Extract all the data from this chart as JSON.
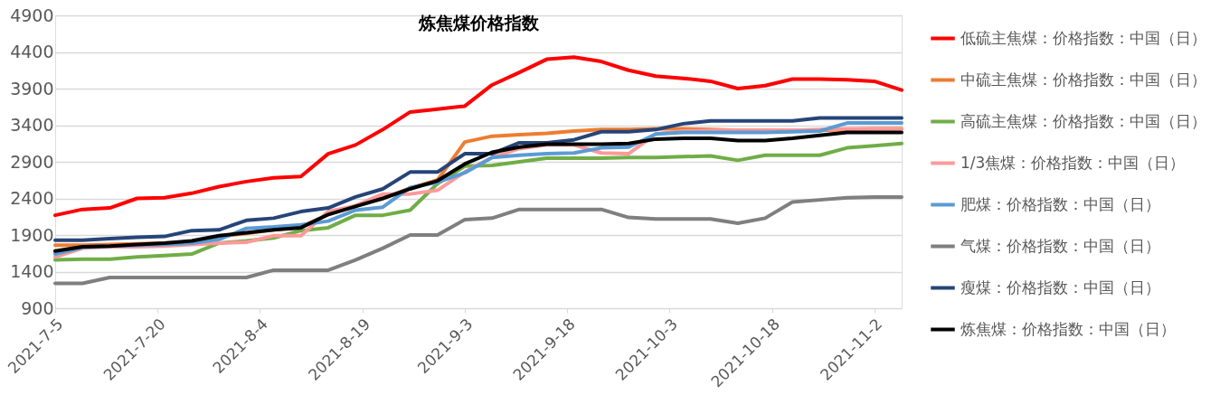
{
  "chart_data": {
    "type": "line",
    "title": "炼焦煤价格指数",
    "x": [
      "2021-07-05",
      "2021-07-09",
      "2021-07-13",
      "2021-07-17",
      "2021-07-21",
      "2021-07-25",
      "2021-07-29",
      "2021-08-02",
      "2021-08-06",
      "2021-08-10",
      "2021-08-14",
      "2021-08-18",
      "2021-08-22",
      "2021-08-26",
      "2021-08-30",
      "2021-09-03",
      "2021-09-07",
      "2021-09-11",
      "2021-09-15",
      "2021-09-19",
      "2021-09-23",
      "2021-09-27",
      "2021-10-01",
      "2021-10-05",
      "2021-10-09",
      "2021-10-13",
      "2021-10-17",
      "2021-10-21",
      "2021-10-25",
      "2021-10-29",
      "2021-11-02",
      "2021-11-06"
    ],
    "series": [
      {
        "name": "低硫主焦煤：价格指数：中国（日）",
        "color": "#ff0000",
        "values": [
          2170,
          2250,
          2270,
          2400,
          2410,
          2470,
          2560,
          2630,
          2680,
          2700,
          3010,
          3130,
          3340,
          3580,
          3620,
          3660,
          3950,
          4120,
          4300,
          4330,
          4270,
          4150,
          4070,
          4040,
          4000,
          3900,
          3940,
          4030,
          4030,
          4020,
          4000,
          3880
        ]
      },
      {
        "name": "中硫主焦煤：价格指数：中国（日）",
        "color": "#ed7d31",
        "values": [
          1760,
          1760,
          1770,
          1780,
          1790,
          1800,
          1880,
          1920,
          1970,
          2010,
          2180,
          2300,
          2400,
          2540,
          2650,
          3170,
          3250,
          3270,
          3290,
          3320,
          3340,
          3340,
          3350,
          3350,
          3340,
          3330,
          3330,
          3330,
          3330,
          3340,
          3350,
          3350
        ]
      },
      {
        "name": "高硫主焦煤：价格指数：中国（日）",
        "color": "#70ad47",
        "values": [
          1560,
          1570,
          1570,
          1600,
          1620,
          1640,
          1790,
          1820,
          1860,
          1960,
          2000,
          2170,
          2170,
          2240,
          2600,
          2840,
          2850,
          2900,
          2950,
          2950,
          2950,
          2960,
          2960,
          2970,
          2980,
          2920,
          2990,
          2990,
          2990,
          3090,
          3120,
          3150
        ]
      },
      {
        "name": "1/3焦煤：价格指数：中国（日）",
        "color": "#ff9999",
        "values": [
          1600,
          1720,
          1740,
          1740,
          1750,
          1770,
          1790,
          1800,
          1890,
          1890,
          2220,
          2300,
          2460,
          2460,
          2510,
          2760,
          2960,
          3080,
          3130,
          3130,
          3020,
          3010,
          3280,
          3320,
          3330,
          3330,
          3330,
          3330,
          3340,
          3350,
          3350,
          3350
        ]
      },
      {
        "name": "肥煤：价格指数：中国（日）",
        "color": "#5b9bd5",
        "values": [
          1640,
          1730,
          1750,
          1760,
          1770,
          1790,
          1840,
          1990,
          2010,
          2040,
          2090,
          2240,
          2280,
          2550,
          2620,
          2750,
          2960,
          2990,
          3010,
          3020,
          3090,
          3100,
          3280,
          3300,
          3300,
          3300,
          3300,
          3310,
          3320,
          3430,
          3430,
          3430
        ]
      },
      {
        "name": "气煤：价格指数：中国（日）",
        "color": "#7f7f7f",
        "values": [
          1240,
          1240,
          1320,
          1320,
          1320,
          1320,
          1320,
          1320,
          1420,
          1420,
          1420,
          1560,
          1720,
          1900,
          1900,
          2110,
          2130,
          2250,
          2250,
          2250,
          2250,
          2140,
          2120,
          2120,
          2120,
          2060,
          2130,
          2350,
          2380,
          2410,
          2420,
          2420
        ]
      },
      {
        "name": "瘦煤：价格指数：中国（日）",
        "color": "#264478",
        "values": [
          1830,
          1830,
          1850,
          1870,
          1880,
          1960,
          1970,
          2100,
          2130,
          2220,
          2270,
          2420,
          2530,
          2760,
          2760,
          3010,
          3010,
          3160,
          3160,
          3200,
          3310,
          3310,
          3340,
          3420,
          3460,
          3460,
          3460,
          3460,
          3500,
          3500,
          3500,
          3500
        ]
      },
      {
        "name": "炼焦煤：价格指数：中国（日）",
        "color": "#000000",
        "values": [
          1680,
          1740,
          1750,
          1770,
          1790,
          1820,
          1890,
          1930,
          1970,
          2000,
          2180,
          2290,
          2400,
          2530,
          2640,
          2870,
          3030,
          3100,
          3140,
          3140,
          3140,
          3150,
          3210,
          3220,
          3220,
          3190,
          3190,
          3220,
          3260,
          3300,
          3300,
          3300
        ]
      }
    ],
    "xlim": [
      "2021-07-05",
      "2021-11-06"
    ],
    "xticks": [
      {
        "value": "2021-07-05",
        "label": "2021-7-5"
      },
      {
        "value": "2021-07-20",
        "label": "2021-7-20"
      },
      {
        "value": "2021-08-04",
        "label": "2021-8-4"
      },
      {
        "value": "2021-08-19",
        "label": "2021-8-19"
      },
      {
        "value": "2021-09-03",
        "label": "2021-9-3"
      },
      {
        "value": "2021-09-18",
        "label": "2021-9-18"
      },
      {
        "value": "2021-10-03",
        "label": "2021-10-3"
      },
      {
        "value": "2021-10-18",
        "label": "2021-10-18"
      },
      {
        "value": "2021-11-02",
        "label": "2021-11-2"
      }
    ],
    "ylim": [
      900,
      4900
    ],
    "yticks": [
      900,
      1400,
      1900,
      2400,
      2900,
      3400,
      3900,
      4400,
      4900
    ],
    "grid": "y",
    "legend": "right",
    "marker": "none",
    "line_style": "solid"
  }
}
